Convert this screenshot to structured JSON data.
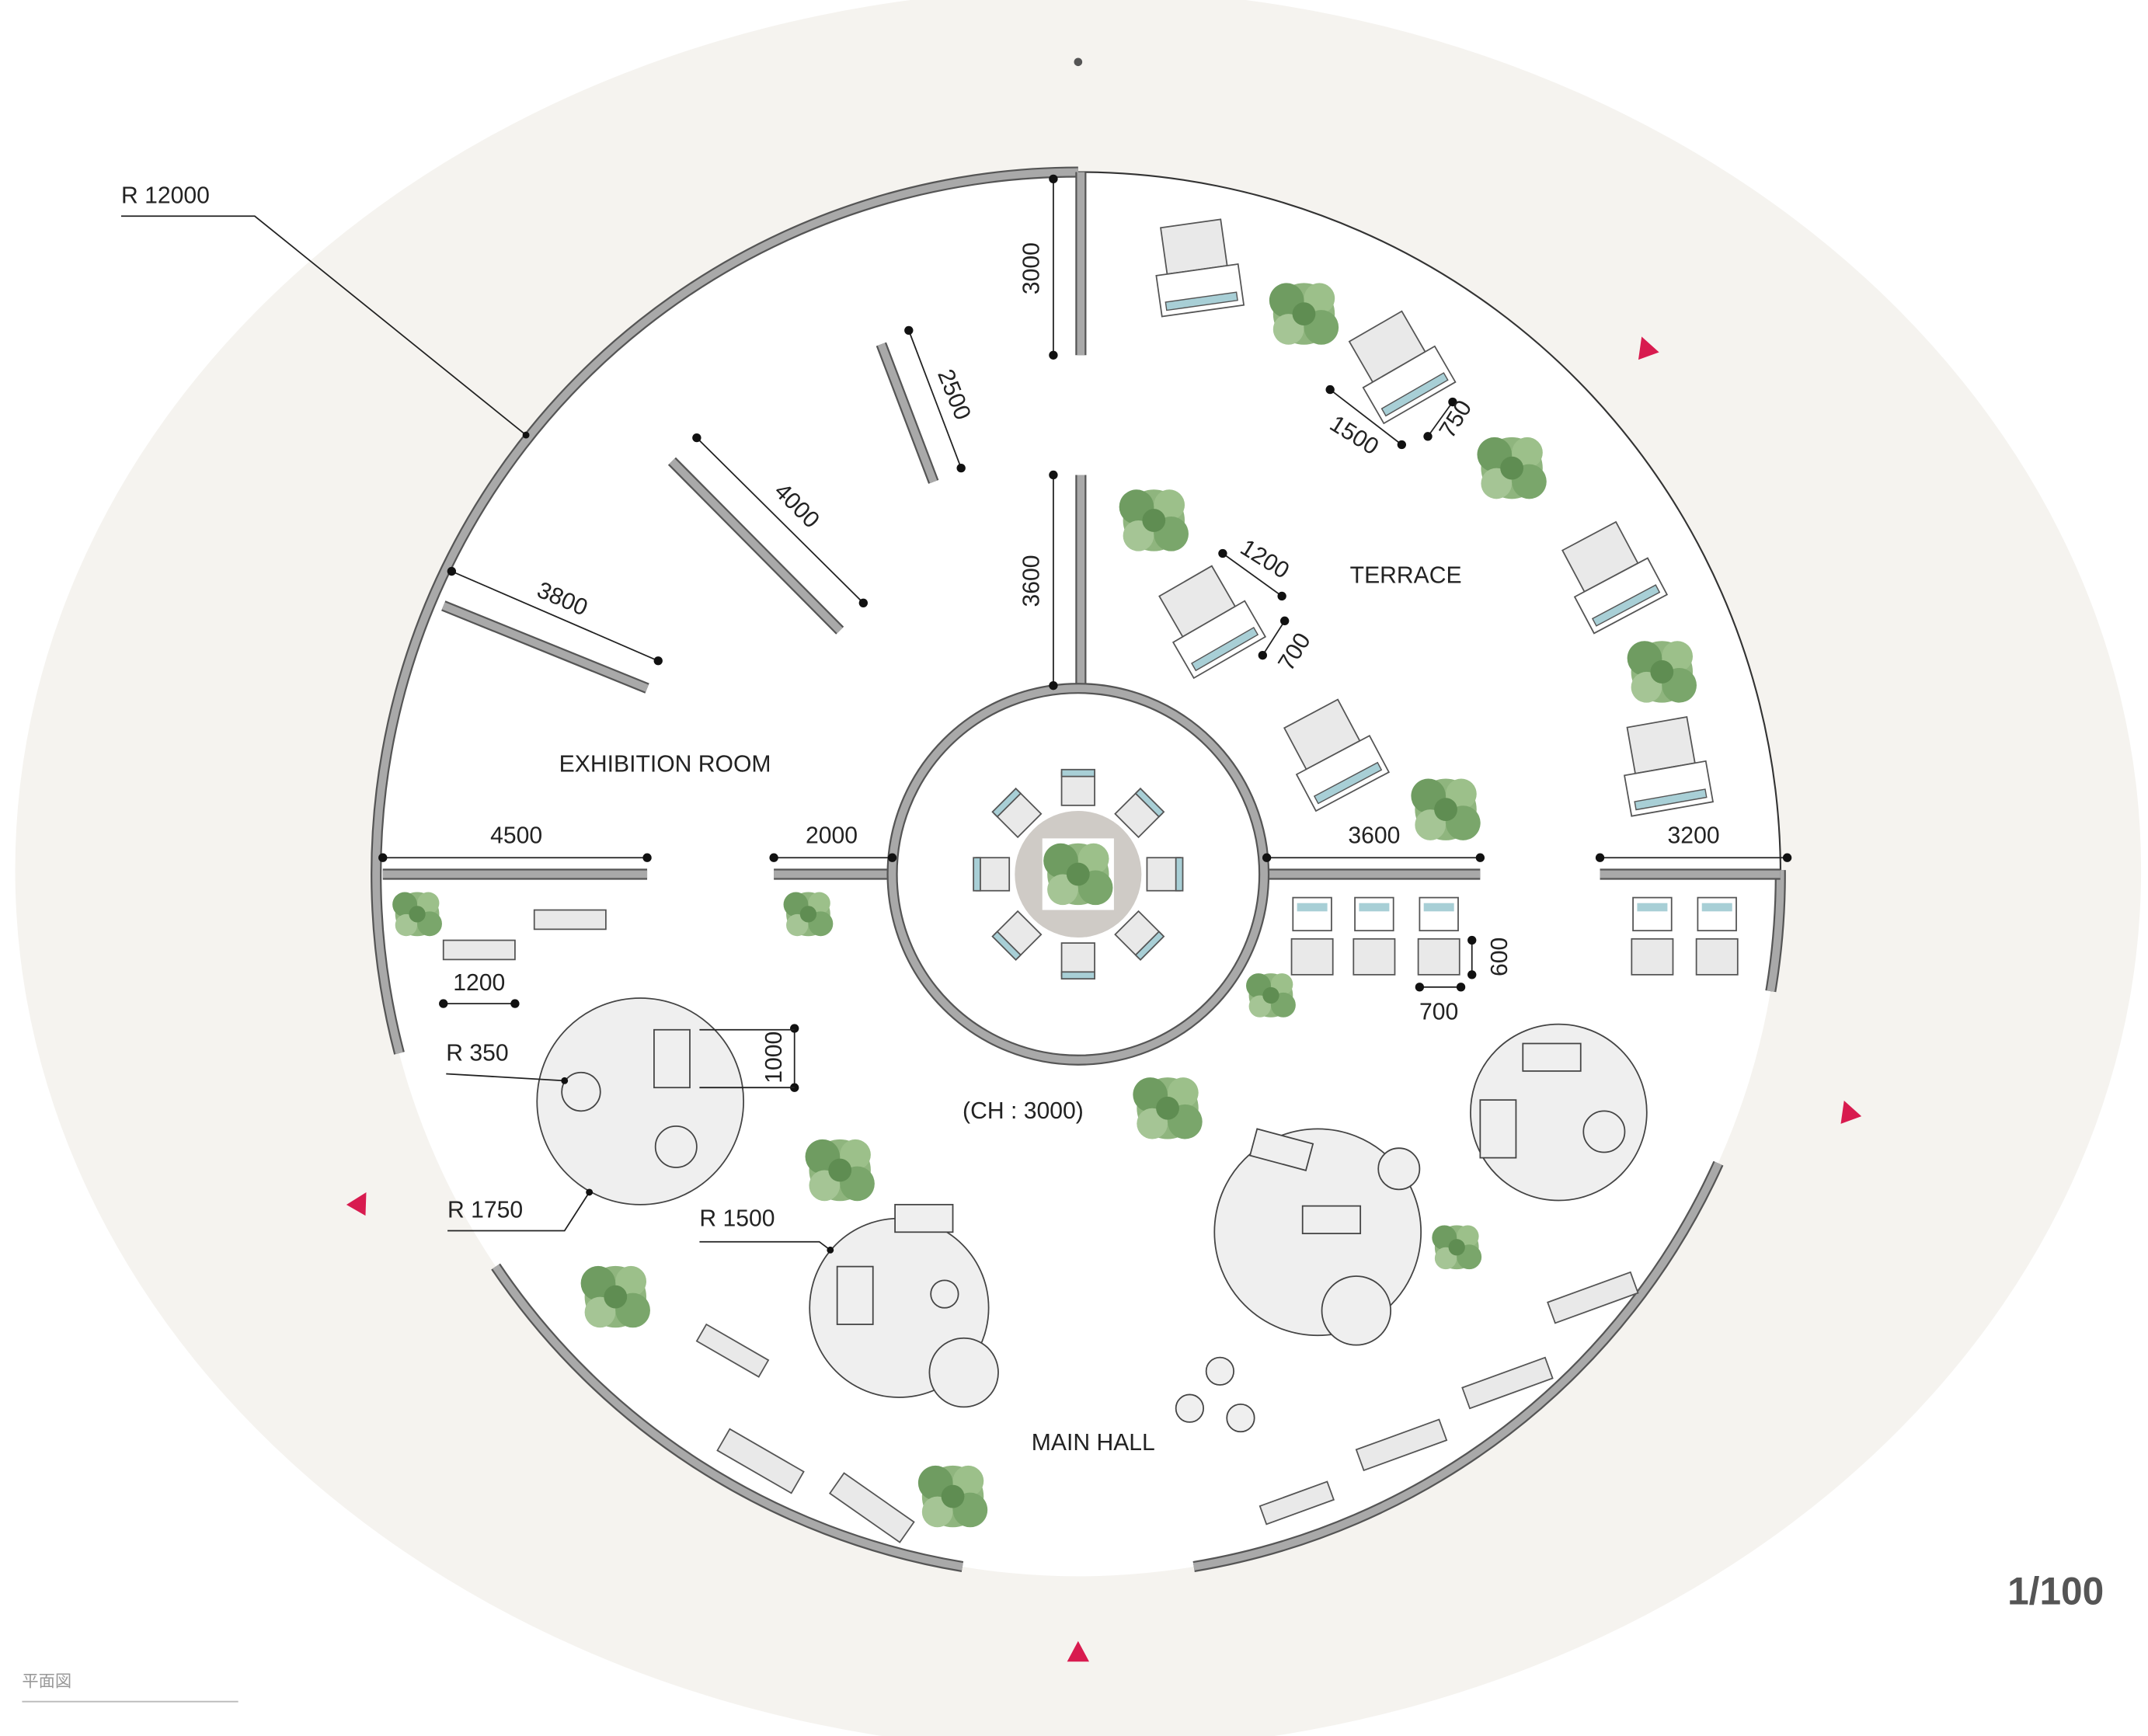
{
  "title": "平面図",
  "scale": "1/100",
  "rooms": {
    "exhibition": "EXHIBITION ROOM",
    "terrace": "TERRACE",
    "main_hall": "MAIN HALL",
    "ceiling_height": "(CH : 3000)"
  },
  "radii": {
    "outer": "R 12000",
    "table_large": "R 1750",
    "table_medium": "R 1500",
    "stool": "R 350"
  },
  "dimensions": {
    "wall_top": "3000",
    "wall_2500": "2500",
    "wall_4000": "4000",
    "wall_3800": "3800",
    "wall_center": "3600",
    "lounge_width_a": "1200",
    "lounge_depth_a": "700",
    "lounge_width_b": "1500",
    "lounge_depth_b": "750",
    "wall_4500": "4500",
    "wall_2000": "2000",
    "wall_3600": "3600",
    "wall_3200": "3200",
    "seat_depth": "600",
    "seat_width": "700",
    "bench_width": "1200",
    "desk_length": "1000"
  }
}
